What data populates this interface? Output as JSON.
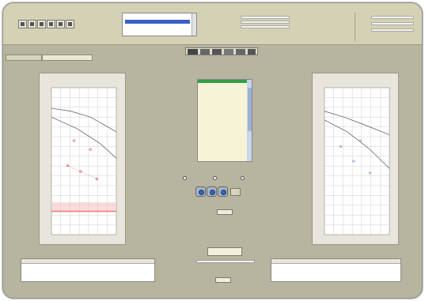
{
  "toolbar": {
    "icons": [
      "new-icon",
      "save-icon",
      "open-icon",
      "print-icon",
      "edit-icon",
      "export-icon"
    ],
    "patient_list": [
      "",
      ""
    ],
    "info_lines": [
      "",
      "",
      ""
    ],
    "right_fields": [
      "",
      "",
      ""
    ]
  },
  "tools": {
    "icons": [
      "cursor-icon",
      "pencil-icon",
      "eraser-icon",
      "flag-icon",
      "zoom-icon",
      "help-icon"
    ]
  },
  "tabs": [
    {
      "label": ""
    },
    {
      "label": ""
    }
  ],
  "center": {
    "list_label": "",
    "items": [
      "",
      "",
      "",
      "",
      "",
      "",
      "",
      "",
      "",
      "",
      "",
      "",
      "",
      "",
      "",
      "",
      "",
      "",
      "",
      "",
      "",
      "",
      "",
      ""
    ],
    "radio_options": [
      "",
      "",
      ""
    ],
    "small_label_1": "",
    "small_value_1": "",
    "action_button": "",
    "small_label_2": "",
    "small_value_2": ""
  },
  "left_chart": {
    "title": "",
    "xlabel": "",
    "ylabel": "",
    "accent": "#d94040",
    "line_color": "#555555",
    "grid_color": "#cfcfc8",
    "area_bg": "#ffffff",
    "band_color": "#f7c5c5"
  },
  "right_chart": {
    "title": "",
    "xlabel": "",
    "ylabel": "",
    "accent": "#6a8cc8",
    "line_color": "#555555",
    "grid_color": "#cfcfc8",
    "area_bg": "#ffffff"
  },
  "left_table": {
    "headers": [
      "",
      "",
      "",
      "",
      ""
    ],
    "rows": [
      [
        "",
        "",
        "",
        "",
        ""
      ],
      [
        "",
        "",
        "",
        "",
        ""
      ]
    ]
  },
  "right_table": {
    "headers": [
      "",
      "",
      "",
      "",
      ""
    ],
    "rows": [
      [
        "",
        "",
        "",
        "",
        ""
      ],
      [
        "",
        "",
        "",
        "",
        ""
      ]
    ]
  }
}
